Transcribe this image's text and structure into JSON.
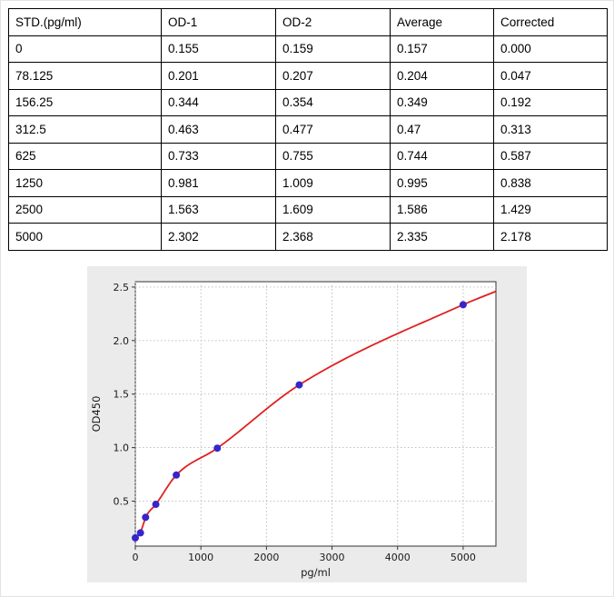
{
  "table": {
    "headers": [
      "STD.(pg/ml)",
      "OD-1",
      "OD-2",
      "Average",
      "Corrected"
    ],
    "rows": [
      [
        "0",
        "0.155",
        "0.159",
        "0.157",
        "0.000"
      ],
      [
        "78.125",
        "0.201",
        "0.207",
        "0.204",
        "0.047"
      ],
      [
        "156.25",
        "0.344",
        "0.354",
        "0.349",
        "0.192"
      ],
      [
        "312.5",
        "0.463",
        "0.477",
        "0.47",
        "0.313"
      ],
      [
        "625",
        "0.733",
        "0.755",
        "0.744",
        "0.587"
      ],
      [
        "1250",
        "0.981",
        "1.009",
        "0.995",
        "0.838"
      ],
      [
        "2500",
        "1.563",
        "1.609",
        "1.586",
        "1.429"
      ],
      [
        "5000",
        "2.302",
        "2.368",
        "2.335",
        "2.178"
      ]
    ]
  },
  "chart_data": {
    "type": "scatter",
    "fit": "smooth-curve",
    "x": [
      0,
      78.125,
      156.25,
      312.5,
      625,
      1250,
      2500,
      5000
    ],
    "y": [
      0.157,
      0.204,
      0.349,
      0.47,
      0.744,
      0.995,
      1.586,
      2.335
    ],
    "curve_end": {
      "x": 5500,
      "y": 2.46
    },
    "title": "",
    "xlabel": "pg/ml",
    "ylabel": "OD450",
    "xlim": [
      0,
      5500
    ],
    "ylim": [
      0.08,
      2.55
    ],
    "xticks": [
      0,
      1000,
      2000,
      3000,
      4000,
      5000
    ],
    "yticks": [
      0.5,
      1.0,
      1.5,
      2.0,
      2.5
    ],
    "grid": true,
    "legend": "none",
    "colors": {
      "curve": "#e02020",
      "points": "#3525cb",
      "panel_bg": "#ebebeb",
      "plot_bg": "#ffffff",
      "grid_line": "#b8b8b8",
      "axis": "#333333"
    }
  }
}
